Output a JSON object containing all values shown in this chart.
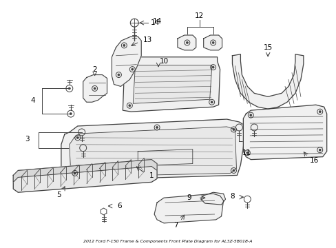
{
  "title": "2012 Ford F-150 Frame & Components Front Plate Diagram for AL3Z-5B018-A",
  "background_color": "#ffffff",
  "line_color": "#404040",
  "text_color": "#000000",
  "fig_width": 4.89,
  "fig_height": 3.6,
  "dpi": 100
}
